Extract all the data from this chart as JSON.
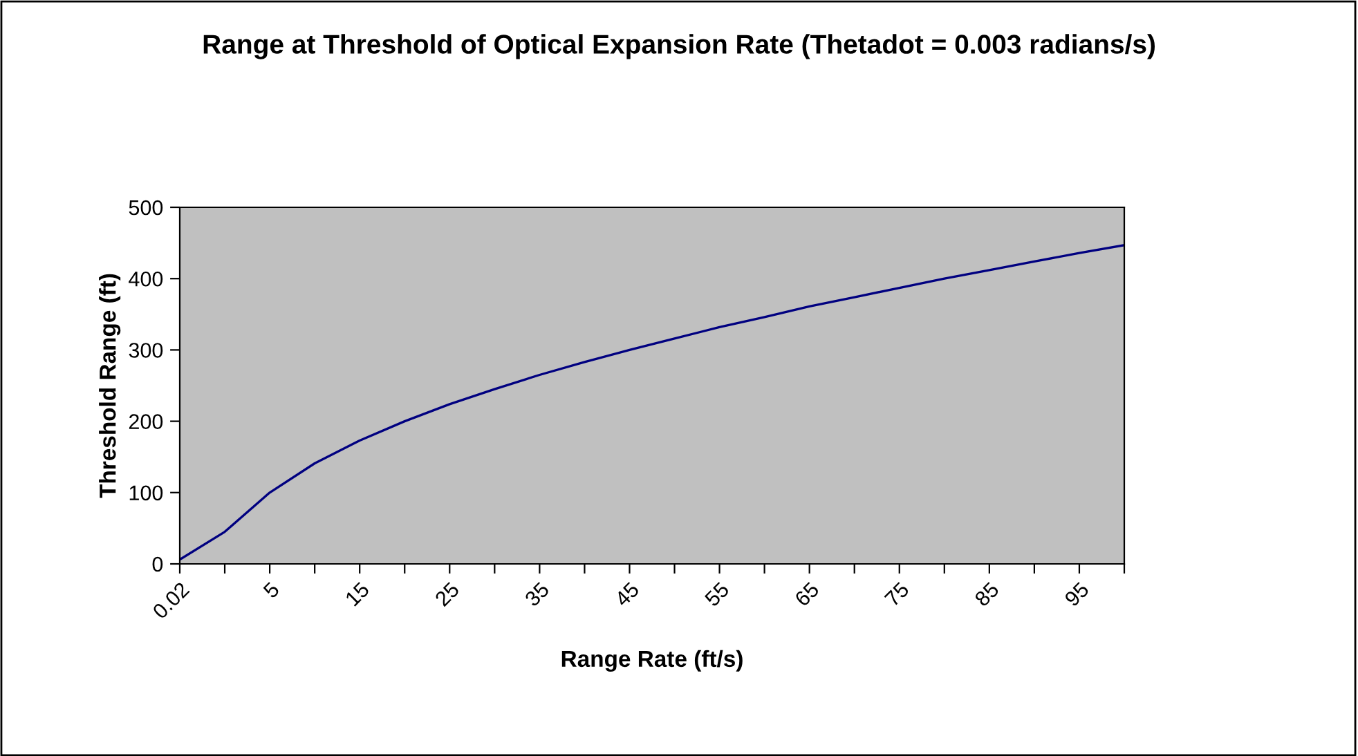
{
  "chart_data": {
    "type": "line",
    "title": "Range at Threshold of Optical Expansion Rate (Thetadot = 0.003 radians/s)",
    "xlabel": "Range Rate (ft/s)",
    "ylabel": "Threshold Range (ft)",
    "categories": [
      "0.02",
      null,
      "5",
      null,
      "15",
      null,
      "25",
      null,
      "35",
      null,
      "45",
      null,
      "55",
      null,
      "65",
      null,
      "75",
      null,
      "85",
      null,
      "95",
      null
    ],
    "series": [
      {
        "color": "#000080",
        "values": [
          6,
          45,
          100,
          141,
          173,
          200,
          224,
          245,
          265,
          283,
          300,
          316,
          332,
          346,
          361,
          374,
          387,
          400,
          412,
          424,
          436,
          447
        ]
      }
    ],
    "ylim": [
      0,
      500
    ],
    "yticks": [
      0,
      100,
      200,
      300,
      400,
      500
    ],
    "grid": false,
    "legend": false,
    "marker": "none",
    "line_style": "solid"
  }
}
